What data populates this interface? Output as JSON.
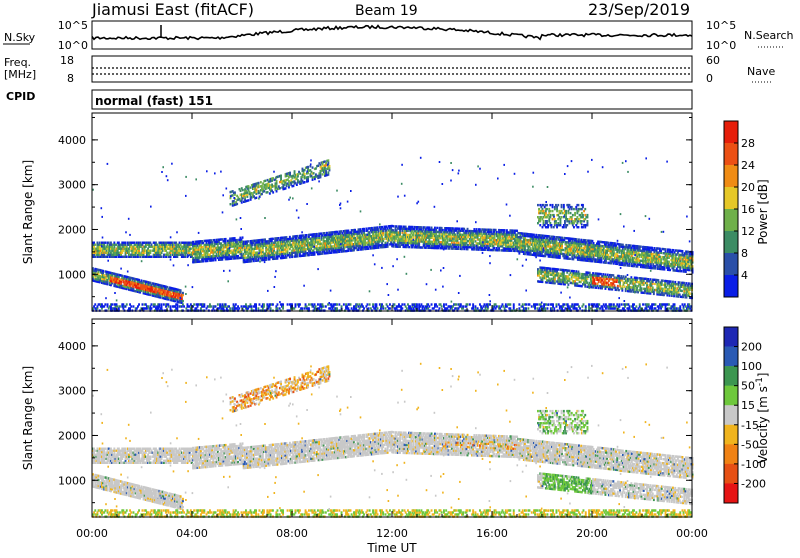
{
  "header": {
    "station": "Jiamusi East (fitACF)",
    "beam": "Beam 19",
    "date": "23/Sep/2019"
  },
  "strip_noise": {
    "left_label": "N.Sky",
    "right_label": "N.Search",
    "left_ticks": [
      "10^5",
      "10^0"
    ],
    "right_ticks": [
      "10^5",
      "10^0"
    ]
  },
  "strip_freq": {
    "left_label_1": "Freq.",
    "left_label_2": "[MHz]",
    "right_label": "Nave",
    "left_ticks": [
      "18",
      "8"
    ],
    "right_ticks": [
      "60",
      "0"
    ]
  },
  "cpid": {
    "label": "CPID",
    "program": "normal (fast) 151"
  },
  "chart_data": [
    {
      "type": "heatmap",
      "name": "power",
      "ylabel": "Slant Range [km]",
      "xlabel": "",
      "ylim": [
        180,
        4600
      ],
      "yticks": [
        "1000",
        "2000",
        "3000",
        "4000"
      ],
      "xlim": [
        0,
        24
      ],
      "colorbar": {
        "label": "Power [dB]",
        "ticks": [
          "4",
          "8",
          "12",
          "16",
          "20",
          "24",
          "28"
        ],
        "colors": [
          "#0a1ee6",
          "#2a4fa8",
          "#3c8c64",
          "#6fb04a",
          "#e6c828",
          "#f08c14",
          "#ec5014",
          "#e61e0a"
        ]
      }
    },
    {
      "type": "heatmap",
      "name": "velocity",
      "ylabel": "Slant Range [km]",
      "xlabel": "Time UT",
      "ylim": [
        180,
        4600
      ],
      "yticks": [
        "1000",
        "2000",
        "3000",
        "4000"
      ],
      "xlim": [
        0,
        24
      ],
      "xticks": [
        "00:00",
        "04:00",
        "08:00",
        "12:00",
        "16:00",
        "20:00",
        "00:00"
      ],
      "colorbar": {
        "label": "Velocity [m s^-1]",
        "ticks": [
          "200",
          "100",
          "50",
          "15",
          "-15",
          "-50",
          "-100",
          "-200"
        ],
        "colors": [
          "#1e28b4",
          "#2a5ab4",
          "#3c9650",
          "#6ec83c",
          "#c8c8c8",
          "#f0b41e",
          "#f08214",
          "#e65014",
          "#e61414"
        ]
      }
    }
  ]
}
